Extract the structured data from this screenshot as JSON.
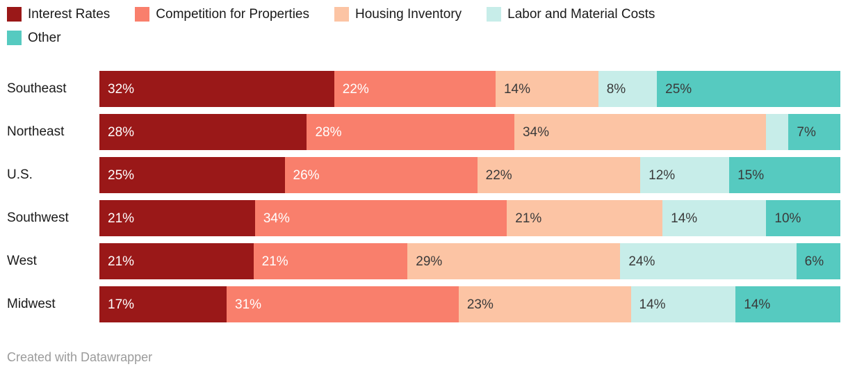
{
  "footer": {
    "credit": "Created with Datawrapper"
  },
  "chart_data": {
    "type": "bar",
    "stacked": true,
    "normalized": true,
    "orientation": "horizontal",
    "unit": "%",
    "legend_position": "top",
    "grid": false,
    "axes_visible": false,
    "categories": [
      "Southeast",
      "Northeast",
      "U.S.",
      "Southwest",
      "West",
      "Midwest"
    ],
    "series": [
      {
        "name": "Interest Rates",
        "color": "#9a1818",
        "label_color": "#ffffff",
        "values": [
          32,
          28,
          25,
          21,
          21,
          17
        ],
        "labels": [
          "32%",
          "28%",
          "25%",
          "21%",
          "21%",
          "17%"
        ]
      },
      {
        "name": "Competition for Properties",
        "color": "#f97f6c",
        "label_color": "#ffffff",
        "values": [
          22,
          28,
          26,
          34,
          21,
          31
        ],
        "labels": [
          "22%",
          "28%",
          "26%",
          "34%",
          "21%",
          "31%"
        ]
      },
      {
        "name": "Housing Inventory",
        "color": "#fcc4a4",
        "label_color": "#3a3a3a",
        "values": [
          14,
          34,
          22,
          21,
          29,
          23
        ],
        "labels": [
          "14%",
          "34%",
          "22%",
          "21%",
          "29%",
          "23%"
        ]
      },
      {
        "name": "Labor and Material Costs",
        "color": "#c7ede9",
        "label_color": "#3a3a3a",
        "values": [
          8,
          3,
          12,
          14,
          24,
          14
        ],
        "labels": [
          "8%",
          "",
          "12%",
          "14%",
          "24%",
          "14%"
        ]
      },
      {
        "name": "Other",
        "color": "#56cac0",
        "label_color": "#3a3a3a",
        "values": [
          25,
          7,
          15,
          10,
          6,
          14
        ],
        "labels": [
          "25%",
          "7%",
          "15%",
          "10%",
          "6%",
          "14%"
        ]
      }
    ]
  }
}
